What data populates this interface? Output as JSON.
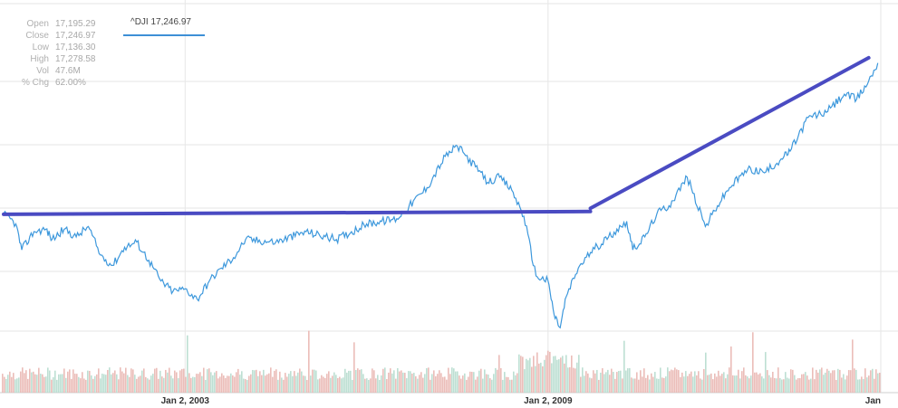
{
  "ohlc": [
    {
      "label": "Open",
      "value": "17,195.29"
    },
    {
      "label": "Close",
      "value": "17,246.97"
    },
    {
      "label": "Low",
      "value": "17,136.30"
    },
    {
      "label": "High",
      "value": "17,278.58"
    },
    {
      "label": "Vol",
      "value": "47.6M"
    },
    {
      "label": "% Chg",
      "value": "62.00%"
    }
  ],
  "legend": {
    "label": "^DJI 17,246.97"
  },
  "colors": {
    "price_line": "#3d98dc",
    "trend_line": "#4a4bc2",
    "volume_down": "#e7b1ad",
    "volume_up": "#b2d9cb",
    "grid": "#e6e6e6"
  },
  "chart_data": {
    "type": "line",
    "title": "",
    "xlabel": "",
    "ylabel": "",
    "x_ticks": [
      "Jan 2, 2003",
      "Jan 2, 2009",
      "Jan"
    ],
    "xlim": [
      2000.0,
      2014.5
    ],
    "ylim": [
      4500,
      19000
    ],
    "grid": true,
    "series": [
      {
        "name": "^DJI",
        "x": [
          2000.0,
          2000.2,
          2000.3,
          2000.5,
          2000.7,
          2000.8,
          2001.0,
          2001.2,
          2001.4,
          2001.6,
          2001.8,
          2002.0,
          2002.2,
          2002.4,
          2002.6,
          2002.8,
          2003.0,
          2003.2,
          2003.4,
          2003.6,
          2003.8,
          2004.0,
          2004.5,
          2005.0,
          2005.5,
          2006.0,
          2006.5,
          2007.0,
          2007.3,
          2007.5,
          2007.8,
          2008.0,
          2008.2,
          2008.4,
          2008.6,
          2008.8,
          2009.0,
          2009.1,
          2009.2,
          2009.3,
          2009.5,
          2009.7,
          2010.0,
          2010.3,
          2010.4,
          2010.6,
          2010.8,
          2011.0,
          2011.3,
          2011.6,
          2011.8,
          2012.0,
          2012.3,
          2012.6,
          2012.9,
          2013.0,
          2013.3,
          2013.6,
          2013.9,
          2014.1,
          2014.3,
          2014.45
        ],
        "y": [
          11400,
          11000,
          10000,
          10700,
          10800,
          10400,
          10800,
          10500,
          10900,
          9800,
          9400,
          10100,
          10300,
          9600,
          8800,
          8400,
          8500,
          8100,
          8800,
          9300,
          9700,
          10400,
          10300,
          10700,
          10400,
          11000,
          11200,
          12400,
          13600,
          14000,
          13200,
          12600,
          12800,
          12300,
          11300,
          9000,
          8800,
          7500,
          7000,
          8200,
          9300,
          9900,
          10500,
          11100,
          10000,
          10500,
          11400,
          11700,
          12800,
          10900,
          11700,
          12400,
          13100,
          13000,
          13600,
          13800,
          15100,
          15300,
          16000,
          15800,
          16500,
          17200
        ]
      }
    ],
    "volume_shown": true,
    "trend_lines": [
      {
        "x": [
          2000.0,
          2009.7
        ],
        "y": [
          11370,
          11480
        ]
      },
      {
        "x": [
          2009.7,
          2014.3
        ],
        "y": [
          11600,
          17400
        ]
      }
    ]
  }
}
